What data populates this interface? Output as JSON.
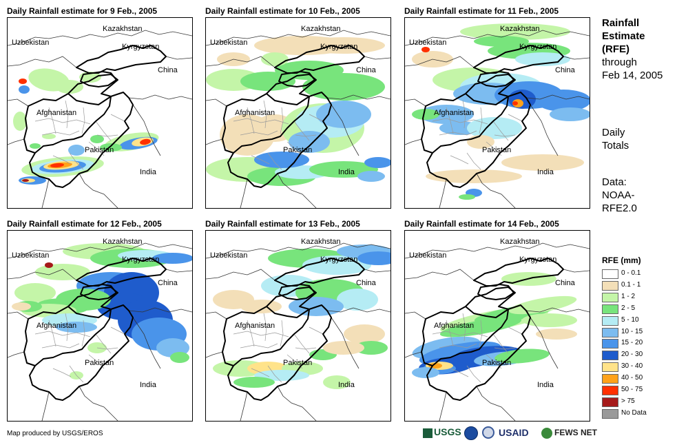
{
  "panels": [
    {
      "title": "Daily Rainfall estimate for 9 Feb., 2005",
      "labels": {
        "kazakhstan": "Kazakhstan",
        "uzbekistan": "Uzbekistan",
        "kyrgyzstan": "Kyrgyzstan",
        "china": "China",
        "afghanistan": "Afghanistan",
        "pakistan": "Pakistan",
        "india": "India"
      }
    },
    {
      "title": "Daily Rainfall estimate for 10 Feb., 2005",
      "labels": {
        "kazakhstan": "Kazakhstan",
        "uzbekistan": "Uzbekistan",
        "kyrgyzstan": "Kyrgyzstan",
        "china": "China",
        "afghanistan": "Afghanistan",
        "pakistan": "Pakistan",
        "india": "India"
      }
    },
    {
      "title": "Daily Rainfall estimate for 11 Feb., 2005",
      "labels": {
        "kazakhstan": "Kazakhstan",
        "uzbekistan": "Uzbekistan",
        "kyrgyzstan": "Kyrgyzstan",
        "china": "China",
        "afghanistan": "Afghanistan",
        "pakistan": "Pakistan",
        "india": "India"
      }
    },
    {
      "title": "Daily Rainfall estimate for 12 Feb., 2005",
      "labels": {
        "kazakhstan": "Kazakhstan",
        "uzbekistan": "Uzbekistan",
        "kyrgyzstan": "Kyrgyzstan",
        "china": "China",
        "afghanistan": "Afghanistan",
        "pakistan": "Pakistan",
        "india": "India"
      }
    },
    {
      "title": "Daily Rainfall estimate for 13 Feb., 2005",
      "labels": {
        "kazakhstan": "Kazakhstan",
        "uzbekistan": "Uzbekistan",
        "kyrgyzstan": "Kyrgyzstan",
        "china": "China",
        "afghanistan": "Afghanistan",
        "pakistan": "Pakistan",
        "india": "India"
      }
    },
    {
      "title": "Daily Rainfall estimate for 14 Feb., 2005",
      "labels": {
        "kazakhstan": "Kazakhstan",
        "uzbekistan": "Uzbekistan",
        "kyrgyzstan": "Kyrgyzstan",
        "china": "China",
        "afghanistan": "Afghanistan",
        "pakistan": "Pakistan",
        "india": "India"
      }
    }
  ],
  "side": {
    "title_l1": "Rainfall",
    "title_l2": "Estimate",
    "title_l3": "(RFE)",
    "through": "through",
    "date": "Feb 14, 2005",
    "daily_l1": "Daily",
    "daily_l2": "Totals",
    "data_l1": "Data:",
    "data_l2": "NOAA-",
    "data_l3": "RFE2.0"
  },
  "legend": {
    "title": "RFE (mm)",
    "items": [
      {
        "label": "0 - 0.1",
        "color": "#ffffff"
      },
      {
        "label": "0.1 - 1",
        "color": "#f3dfb8"
      },
      {
        "label": "1 - 2",
        "color": "#c4f5a8"
      },
      {
        "label": "2 - 5",
        "color": "#78e47c"
      },
      {
        "label": "5 - 10",
        "color": "#b5ecf4"
      },
      {
        "label": "10 - 15",
        "color": "#7cbcf0"
      },
      {
        "label": "15 - 20",
        "color": "#4a94ea"
      },
      {
        "label": "20 - 30",
        "color": "#1f5ccc"
      },
      {
        "label": "30 - 40",
        "color": "#ffe38a"
      },
      {
        "label": "40 - 50",
        "color": "#ffa21a"
      },
      {
        "label": "50 - 75",
        "color": "#ff3000"
      },
      {
        "label": "> 75",
        "color": "#a51a1a"
      },
      {
        "label": "No Data",
        "color": "#9a9a9a"
      }
    ]
  },
  "credit": "Map produced by USGS/EROS",
  "logos": {
    "usgs": "USGS",
    "usaid": "USAID",
    "fewsnet": "FEWS NET"
  }
}
